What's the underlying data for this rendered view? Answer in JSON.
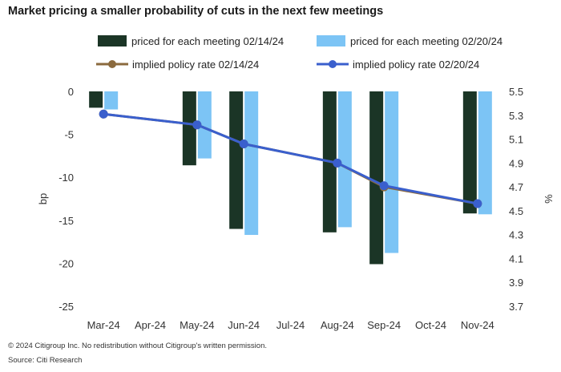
{
  "title": "Market pricing a smaller probability of cuts in the next few meetings",
  "footer": {
    "copyright": "© 2024 Citigroup Inc. No redistribution without Citigroup's written permission.",
    "source": "Source: Citi Research"
  },
  "colors": {
    "bar_0214": "#1b3526",
    "bar_0220": "#7cc4f5",
    "line_0214": "#8b6a3e",
    "line_0220": "#3a5fcd"
  },
  "chart_data": {
    "type": "bar+line",
    "categories": [
      "Mar-24",
      "Apr-24",
      "May-24",
      "Jun-24",
      "Jul-24",
      "Aug-24",
      "Sep-24",
      "Oct-24",
      "Nov-24"
    ],
    "bar_series": [
      {
        "name": "priced for each meeting  02/14/24",
        "values": [
          -1.9,
          null,
          -8.6,
          -16.0,
          null,
          -16.4,
          -20.1,
          null,
          -14.2
        ]
      },
      {
        "name": "priced for each meeting  02/20/24",
        "values": [
          -2.1,
          null,
          -7.8,
          -16.7,
          null,
          -15.8,
          -18.8,
          null,
          -14.3
        ]
      }
    ],
    "line_series": [
      {
        "name": "implied policy rate 02/14/24",
        "values": [
          5.31,
          null,
          5.22,
          5.06,
          null,
          4.9,
          4.7,
          null,
          4.56
        ]
      },
      {
        "name": "implied policy rate 02/20/24",
        "values": [
          5.31,
          null,
          5.22,
          5.06,
          null,
          4.9,
          4.71,
          null,
          4.56
        ]
      }
    ],
    "left_axis": {
      "label": "bp",
      "min": -25,
      "max": 0,
      "ticks": [
        "0",
        "-5",
        "-10",
        "-15",
        "-20",
        "-25"
      ],
      "tick_values": [
        0,
        -5,
        -10,
        -15,
        -20,
        -25
      ]
    },
    "right_axis": {
      "label": "%",
      "min": 3.7,
      "max": 5.5,
      "ticks": [
        "5.5",
        "5.3",
        "5.1",
        "4.9",
        "4.7",
        "4.5",
        "4.3",
        "4.1",
        "3.9",
        "3.7"
      ],
      "tick_values": [
        5.5,
        5.3,
        5.1,
        4.9,
        4.7,
        4.5,
        4.3,
        4.1,
        3.9,
        3.7
      ]
    },
    "grid": false,
    "legend_position": "top"
  }
}
